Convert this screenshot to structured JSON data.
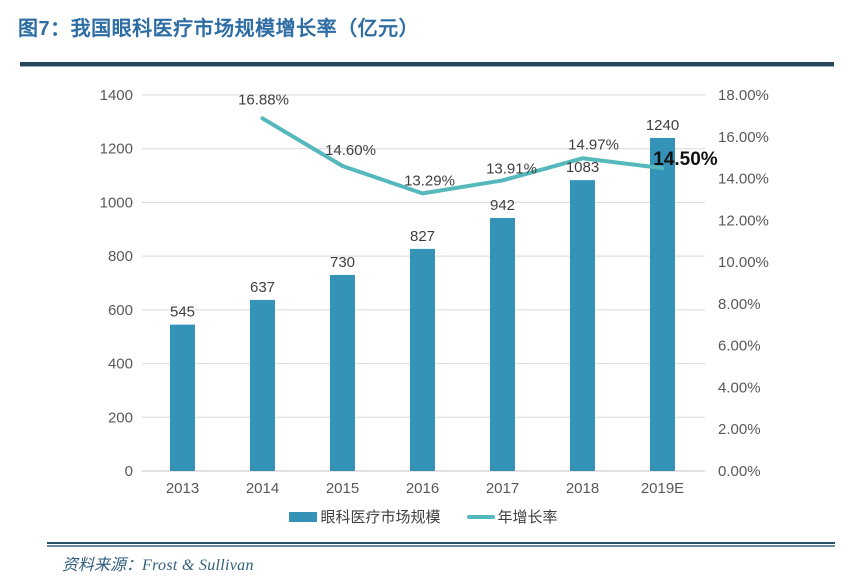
{
  "title": "图7：我国眼科医疗市场规模增长率（亿元）",
  "source": {
    "label": "资料来源：",
    "name": "Frost & Sullivan"
  },
  "colors": {
    "bar": "#3493b7",
    "line": "#54b8bc",
    "title": "#2e6da4",
    "rule": "#27485c",
    "grid": "#d9d9d9",
    "axis_text": "#595959",
    "label_text": "#3f3f3f",
    "highlight_text": "#111111"
  },
  "chart_data": {
    "type": "bar",
    "subtype": "combo-bar-line-dual-axis",
    "categories": [
      "2013",
      "2014",
      "2015",
      "2016",
      "2017",
      "2018",
      "2019E"
    ],
    "series": [
      {
        "name": "眼科医疗市场规模",
        "type": "bar",
        "axis": "left",
        "values": [
          545,
          637,
          730,
          827,
          942,
          1083,
          1240
        ],
        "labels": [
          "545",
          "637",
          "730",
          "827",
          "942",
          "1083",
          "1240"
        ]
      },
      {
        "name": "年增长率",
        "type": "line",
        "axis": "right",
        "values": [
          null,
          16.88,
          14.6,
          13.29,
          13.91,
          14.97,
          14.5
        ],
        "labels": [
          null,
          "16.88%",
          "14.60%",
          "13.29%",
          "13.91%",
          "14.97%",
          "14.50%"
        ],
        "highlight_label": "14.50%"
      }
    ],
    "left_axis": {
      "min": 0,
      "max": 1400,
      "step": 200,
      "ticks": [
        "0",
        "200",
        "400",
        "600",
        "800",
        "1000",
        "1200",
        "1400"
      ]
    },
    "right_axis": {
      "min": 0,
      "max": 18,
      "step": 2,
      "ticks": [
        "0.00%",
        "2.00%",
        "4.00%",
        "6.00%",
        "8.00%",
        "10.00%",
        "12.00%",
        "14.00%",
        "16.00%",
        "18.00%"
      ]
    },
    "grid": "horizontal",
    "legend_position": "bottom"
  }
}
